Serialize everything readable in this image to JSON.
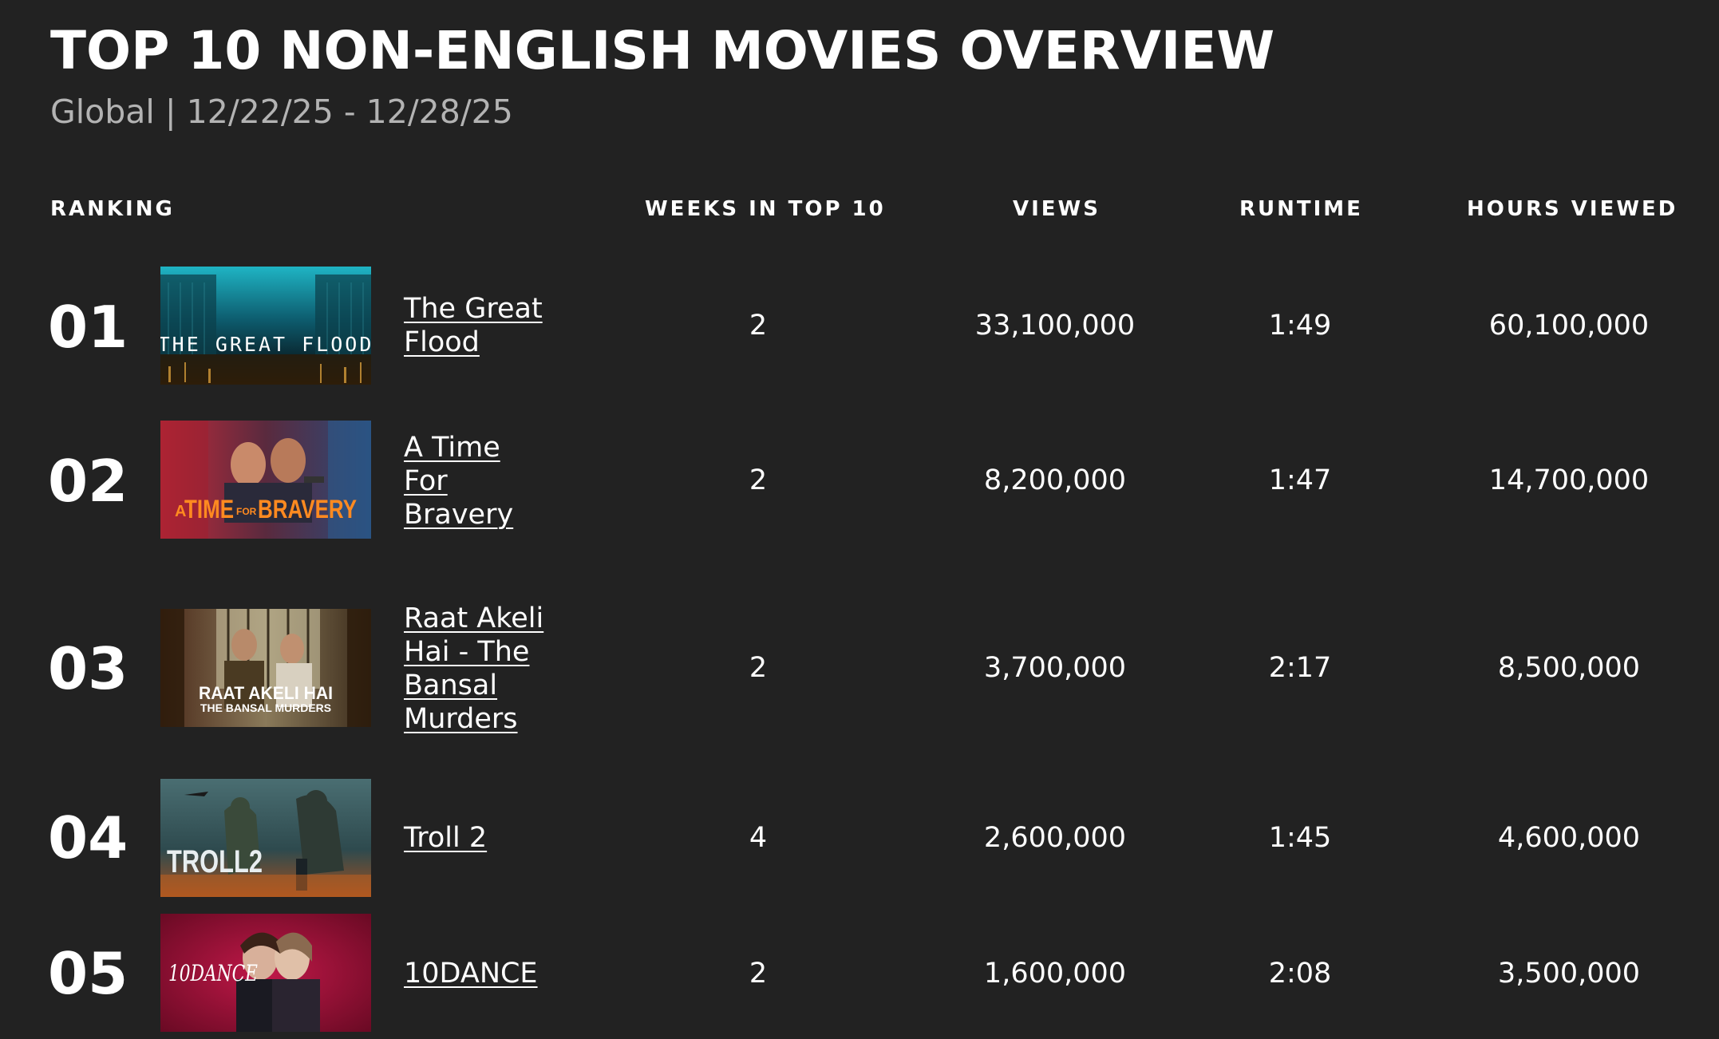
{
  "header": {
    "title": "TOP 10 NON-ENGLISH MOVIES OVERVIEW",
    "subtitle": "Global | 12/22/25 - 12/28/25"
  },
  "columns": {
    "ranking": "RANKING",
    "weeks": "WEEKS IN TOP 10",
    "views": "VIEWS",
    "runtime": "RUNTIME",
    "hours": "HOURS VIEWED"
  },
  "rows": [
    {
      "rank": "01",
      "title": "The Great Flood",
      "poster_text": "THE GREAT FLOOD",
      "weeks": "2",
      "views": "33,100,000",
      "runtime": "1:49",
      "hours": "60,100,000"
    },
    {
      "rank": "02",
      "title": "A Time For Bravery",
      "poster_text_a": "A",
      "poster_text_time": "TIME",
      "poster_text_for": "FOR",
      "poster_text_bravery": "BRAVERY",
      "weeks": "2",
      "views": "8,200,000",
      "runtime": "1:47",
      "hours": "14,700,000"
    },
    {
      "rank": "03",
      "title": "Raat Akeli Hai - The Bansal Murders",
      "poster_text_main": "RAAT AKELI HAI",
      "poster_text_sub": "THE BANSAL MURDERS",
      "weeks": "2",
      "views": "3,700,000",
      "runtime": "2:17",
      "hours": "8,500,000"
    },
    {
      "rank": "04",
      "title": "Troll 2",
      "poster_text": "TROLL2",
      "weeks": "4",
      "views": "2,600,000",
      "runtime": "1:45",
      "hours": "4,600,000"
    },
    {
      "rank": "05",
      "title": "10DANCE",
      "poster_text": "10DANCE",
      "weeks": "2",
      "views": "1,600,000",
      "runtime": "2:08",
      "hours": "3,500,000"
    }
  ],
  "colors": {
    "background": "#222222",
    "text": "#ffffff",
    "subtitle": "#b3b3b3"
  }
}
